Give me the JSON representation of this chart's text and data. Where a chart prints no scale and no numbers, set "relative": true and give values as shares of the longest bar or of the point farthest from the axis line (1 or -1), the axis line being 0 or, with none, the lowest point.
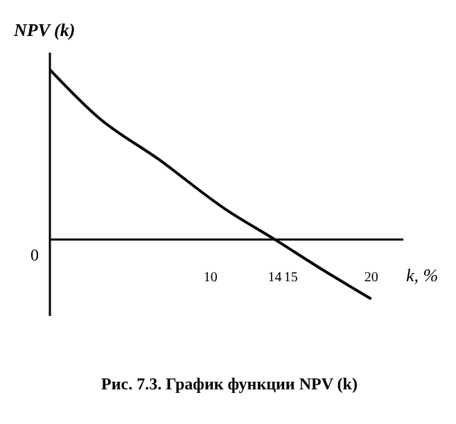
{
  "chart_data": {
    "type": "line",
    "relative": true,
    "xlabel": "k, %",
    "ylabel": "NPV (k)",
    "x": [
      0,
      3,
      6.8,
      10.9,
      14,
      17,
      20
    ],
    "series": [
      {
        "color": "#000000",
        "values": [
          1,
          0.72,
          0.47,
          0.18,
          0,
          -0.18,
          -0.35
        ]
      }
    ],
    "xlim": [
      0,
      22
    ],
    "xticks": [
      10,
      14,
      15,
      20
    ],
    "marker": "none",
    "line_style": "solid",
    "annotations": [
      "0",
      "Рис. 7.3. График функции NPV (k)"
    ]
  }
}
